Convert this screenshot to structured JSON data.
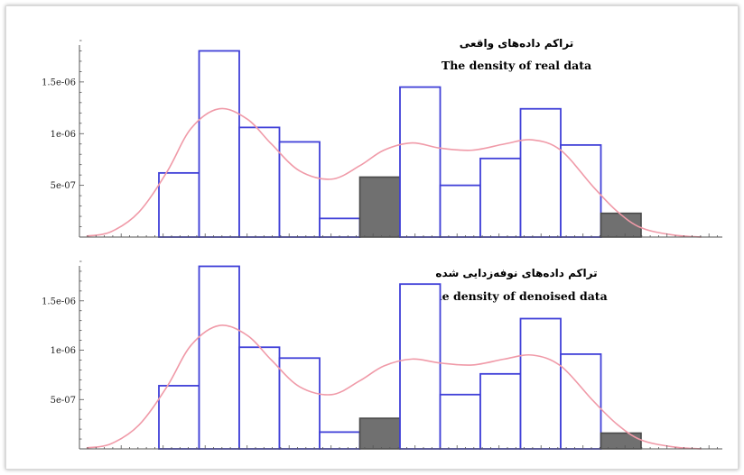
{
  "colors": {
    "bar_stroke": "#4040d8",
    "bar_fill": "#ffffff",
    "highlight_fill": "#707070",
    "highlight_stroke": "#4a4a4a",
    "curve": "#f09aa8",
    "axis": "#555555"
  },
  "chart_data": [
    {
      "type": "bar",
      "title_fa": "تراکم داده‌های واقعی",
      "title_en": "The density of real data",
      "ylim": [
        0,
        1.9e-06
      ],
      "yticks": [
        {
          "value": 5e-07,
          "label": "5e-07"
        },
        {
          "value": 1e-06,
          "label": "1e-06"
        },
        {
          "value": 1.5e-06,
          "label": "1.5e-06"
        }
      ],
      "xlim": [
        0,
        16
      ],
      "bars": [
        {
          "x0": 2,
          "x1": 3,
          "value": 6.2e-07,
          "highlight": false
        },
        {
          "x0": 3,
          "x1": 4,
          "value": 1.8e-06,
          "highlight": false
        },
        {
          "x0": 4,
          "x1": 5,
          "value": 1.06e-06,
          "highlight": false
        },
        {
          "x0": 5,
          "x1": 6,
          "value": 9.2e-07,
          "highlight": false
        },
        {
          "x0": 6,
          "x1": 7,
          "value": 1.8e-07,
          "highlight": false
        },
        {
          "x0": 7,
          "x1": 8,
          "value": 5.8e-07,
          "highlight": true
        },
        {
          "x0": 8,
          "x1": 9,
          "value": 1.45e-06,
          "highlight": false
        },
        {
          "x0": 9,
          "x1": 10,
          "value": 5e-07,
          "highlight": false
        },
        {
          "x0": 10,
          "x1": 11,
          "value": 7.6e-07,
          "highlight": false
        },
        {
          "x0": 11,
          "x1": 12,
          "value": 1.24e-06,
          "highlight": false
        },
        {
          "x0": 12,
          "x1": 13,
          "value": 8.9e-07,
          "highlight": false
        },
        {
          "x0": 13,
          "x1": 14,
          "value": 2.3e-07,
          "highlight": true
        }
      ],
      "curve": {
        "x": [
          0.2,
          0.8,
          1.5,
          2.2,
          2.8,
          3.5,
          4.2,
          4.8,
          5.5,
          6.3,
          7.0,
          7.6,
          8.3,
          9.0,
          9.8,
          10.6,
          11.3,
          12.0,
          12.8,
          13.4,
          14.0,
          14.8,
          15.5
        ],
        "y": [
          1e-08,
          5e-08,
          2.4e-07,
          6.3e-07,
          1.05e-06,
          1.24e-06,
          1.14e-06,
          9e-07,
          6.4e-07,
          5.6e-07,
          6.9e-07,
          8.4e-07,
          9.1e-07,
          8.6e-07,
          8.4e-07,
          9e-07,
          9.4e-07,
          8.4e-07,
          4.9e-07,
          2.5e-07,
          9e-08,
          2e-08,
          0.0
        ]
      }
    },
    {
      "type": "bar",
      "title_fa": "تراکم داده‌های نوفه‌زدایی شده",
      "title_en": "The density of denoised data",
      "ylim": [
        0,
        1.9e-06
      ],
      "yticks": [
        {
          "value": 5e-07,
          "label": "5e-07"
        },
        {
          "value": 1e-06,
          "label": "1e-06"
        },
        {
          "value": 1.5e-06,
          "label": "1.5e-06"
        }
      ],
      "xlim": [
        0,
        16
      ],
      "bars": [
        {
          "x0": 2,
          "x1": 3,
          "value": 6.4e-07,
          "highlight": false
        },
        {
          "x0": 3,
          "x1": 4,
          "value": 1.85e-06,
          "highlight": false
        },
        {
          "x0": 4,
          "x1": 5,
          "value": 1.03e-06,
          "highlight": false
        },
        {
          "x0": 5,
          "x1": 6,
          "value": 9.2e-07,
          "highlight": false
        },
        {
          "x0": 6,
          "x1": 7,
          "value": 1.7e-07,
          "highlight": false
        },
        {
          "x0": 7,
          "x1": 8,
          "value": 3.1e-07,
          "highlight": true
        },
        {
          "x0": 8,
          "x1": 9,
          "value": 1.67e-06,
          "highlight": false
        },
        {
          "x0": 9,
          "x1": 10,
          "value": 5.5e-07,
          "highlight": false
        },
        {
          "x0": 10,
          "x1": 11,
          "value": 7.6e-07,
          "highlight": false
        },
        {
          "x0": 11,
          "x1": 12,
          "value": 1.32e-06,
          "highlight": false
        },
        {
          "x0": 12,
          "x1": 13,
          "value": 9.6e-07,
          "highlight": false
        },
        {
          "x0": 13,
          "x1": 14,
          "value": 1.6e-07,
          "highlight": true
        }
      ],
      "curve": {
        "x": [
          0.2,
          0.8,
          1.5,
          2.2,
          2.8,
          3.5,
          4.2,
          4.8,
          5.5,
          6.3,
          7.0,
          7.6,
          8.3,
          9.0,
          9.8,
          10.6,
          11.3,
          12.0,
          12.8,
          13.4,
          14.0,
          14.8,
          15.5
        ],
        "y": [
          1e-08,
          5e-08,
          2.4e-07,
          6.3e-07,
          1.05e-06,
          1.25e-06,
          1.15e-06,
          9e-07,
          6.3e-07,
          5.5e-07,
          6.9e-07,
          8.4e-07,
          9.1e-07,
          8.7e-07,
          8.5e-07,
          9.1e-07,
          9.5e-07,
          8.4e-07,
          4.9e-07,
          2.5e-07,
          9e-08,
          2e-08,
          0.0
        ]
      }
    }
  ]
}
